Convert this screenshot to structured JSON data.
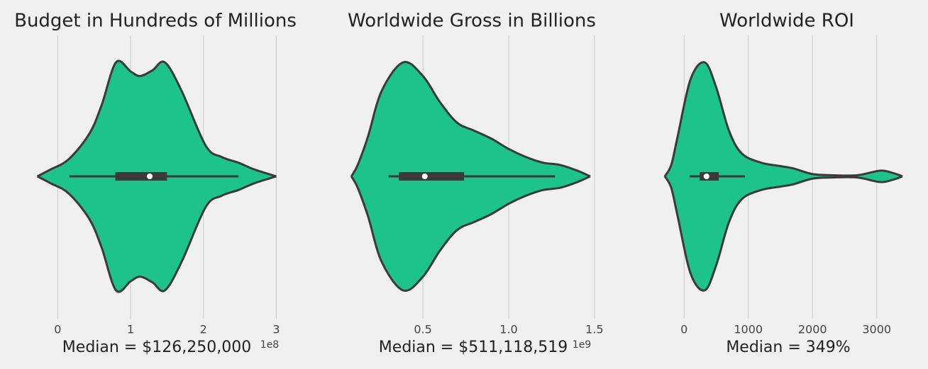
{
  "chart_data": [
    {
      "type": "violin",
      "title": "Budget in Hundreds of Millions",
      "xlabel": "Median = $126,250,000",
      "offset_label": "1e8",
      "color": "#1dc38a",
      "grid": true,
      "xlim": [
        -0.52,
        3.2
      ],
      "xticks": [
        0,
        1,
        2,
        3
      ],
      "kde": {
        "x": [
          -0.28,
          -0.1,
          0.15,
          0.43,
          0.6,
          0.8,
          1.0,
          1.13,
          1.3,
          1.47,
          1.7,
          2.03,
          2.25,
          2.48,
          2.7,
          3.0
        ],
        "density": [
          0,
          0.06,
          0.15,
          0.37,
          0.62,
          1.0,
          0.92,
          0.88,
          0.93,
          1.0,
          0.75,
          0.27,
          0.17,
          0.12,
          0.06,
          0
        ]
      },
      "whiskers": [
        0.16,
        2.48
      ],
      "quartiles": [
        0.79,
        1.5
      ],
      "median": 1.2625
    },
    {
      "type": "violin",
      "title": "Worldwide Gross in Billions",
      "xlabel": "Median = $511,118,519",
      "offset_label": "1e9",
      "color": "#1dc38a",
      "grid": true,
      "xlim": [
        0.02,
        1.55
      ],
      "xticks": [
        0.5,
        {
          "value": 1,
          "label": "1.0"
        },
        1.5
      ],
      "kde": {
        "x": [
          0.083,
          0.12,
          0.18,
          0.26,
          0.385,
          0.5,
          0.6,
          0.7,
          0.8,
          0.9,
          1.0,
          1.1,
          1.2,
          1.3,
          1.4,
          1.475
        ],
        "density": [
          0,
          0.1,
          0.35,
          0.75,
          1.0,
          0.88,
          0.65,
          0.47,
          0.4,
          0.33,
          0.24,
          0.17,
          0.12,
          0.1,
          0.05,
          0
        ]
      },
      "whiskers": [
        0.3,
        1.27
      ],
      "quartiles": [
        0.36,
        0.74
      ],
      "median": 0.511118519
    },
    {
      "type": "violin",
      "title": "Worldwide ROI",
      "xlabel": "Median = 349%",
      "color": "#1dc38a",
      "grid": true,
      "xlim": [
        -400,
        3600
      ],
      "xticks": [
        0,
        1000,
        2000,
        3000
      ],
      "kde": {
        "x": [
          -300,
          -200,
          -100,
          100,
          320,
          500,
          700,
          900,
          1200,
          1500,
          1700,
          2000,
          2300,
          2700,
          3050,
          3250,
          3400
        ],
        "density": [
          0,
          0.1,
          0.35,
          0.85,
          1.0,
          0.78,
          0.4,
          0.2,
          0.12,
          0.09,
          0.07,
          0.02,
          0.01,
          0.01,
          0.05,
          0.03,
          0
        ]
      },
      "whiskers": [
        88,
        948
      ],
      "quartiles": [
        243,
        540
      ],
      "median": 349
    }
  ]
}
